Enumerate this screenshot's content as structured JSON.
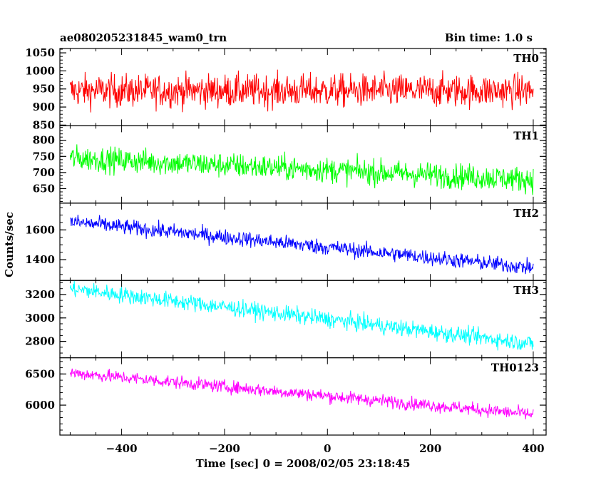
{
  "header": {
    "title": "ae080205231845_wam0_trn",
    "bin_time": "Bin time: 1.0 s"
  },
  "chart_data": {
    "type": "line",
    "xlabel": "Time [sec] 0 = 2008/02/05 23:18:45",
    "ylabel": "Counts/sec",
    "xlim": [
      -520,
      425
    ],
    "x_ticks": [
      -400,
      -200,
      0,
      200,
      400
    ],
    "x_tick_labels": [
      "−400",
      "−200",
      "0",
      "200",
      "400"
    ],
    "x_range": [
      -500,
      400
    ],
    "grid": false,
    "panels": [
      {
        "name": "TH0",
        "color": "#ff0000",
        "ylim": [
          848,
          1062
        ],
        "y_ticks": [
          850,
          900,
          950,
          1000,
          1050
        ],
        "y_minor_step": 10,
        "trend_start": 945,
        "trend_end": 945,
        "noise": 42,
        "min": 848,
        "max": 1062
      },
      {
        "name": "TH1",
        "color": "#00ff00",
        "ylim": [
          605,
          845
        ],
        "y_ticks": [
          650,
          700,
          750,
          800
        ],
        "y_minor_step": 10,
        "trend_start": 745,
        "trend_end": 678,
        "noise": 36,
        "min": 612,
        "max": 845
      },
      {
        "name": "TH2",
        "color": "#0000ff",
        "ylim": [
          1260,
          1780
        ],
        "y_ticks": [
          1400,
          1600
        ],
        "y_minor_step": 50,
        "trend_start": 1655,
        "trend_end": 1345,
        "noise": 48,
        "min": 1270,
        "max": 1780
      },
      {
        "name": "TH3",
        "color": "#00ffff",
        "ylim": [
          2660,
          3320
        ],
        "y_ticks": [
          2800,
          3000,
          3200
        ],
        "y_minor_step": 50,
        "trend_start": 3250,
        "trend_end": 2780,
        "noise": 65,
        "min": 2665,
        "max": 3320
      },
      {
        "name": "TH0123",
        "color": "#ff00ff",
        "ylim": [
          5520,
          6760
        ],
        "y_ticks": [
          6000,
          6500
        ],
        "y_minor_step": 100,
        "trend_start": 6520,
        "trend_end": 5850,
        "noise": 95,
        "min": 5540,
        "max": 6760
      }
    ]
  }
}
